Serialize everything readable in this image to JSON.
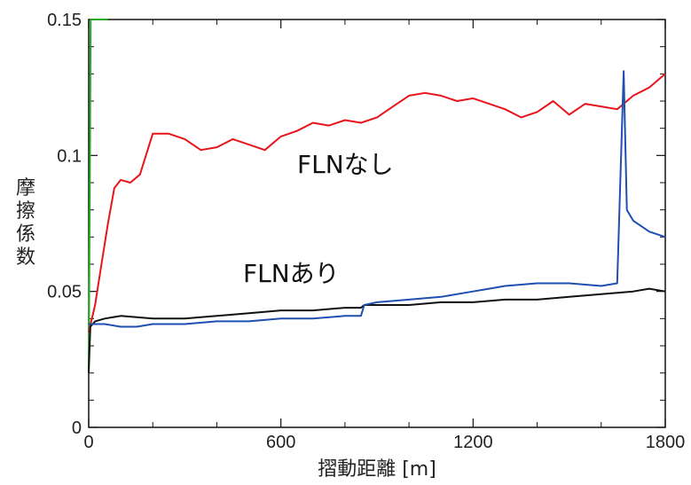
{
  "chart_data": {
    "type": "line",
    "xlabel": "摺動距離 [m]",
    "ylabel": "摩擦係数",
    "xlim": [
      0,
      1800
    ],
    "ylim": [
      0,
      0.15
    ],
    "x_ticks": [
      "0",
      "600",
      "1200",
      "1800"
    ],
    "y_ticks": [
      "0",
      "0.05",
      "0.1",
      "0.15"
    ],
    "grid": false,
    "annotations": [
      "FLNなし",
      "FLNあり"
    ],
    "colors": {
      "red": "#e8141b",
      "blue": "#1f4fb0",
      "black": "#111111",
      "green": "#22aa22"
    },
    "series": [
      {
        "color": "red",
        "x": [
          0,
          20,
          40,
          60,
          80,
          100,
          130,
          160,
          200,
          250,
          300,
          350,
          400,
          450,
          500,
          550,
          600,
          650,
          700,
          750,
          800,
          850,
          900,
          950,
          1000,
          1050,
          1100,
          1150,
          1200,
          1250,
          1300,
          1350,
          1400,
          1450,
          1500,
          1550,
          1600,
          1650,
          1700,
          1750,
          1800
        ],
        "y": [
          0.035,
          0.045,
          0.06,
          0.075,
          0.088,
          0.091,
          0.09,
          0.093,
          0.108,
          0.108,
          0.106,
          0.102,
          0.103,
          0.106,
          0.104,
          0.102,
          0.107,
          0.109,
          0.112,
          0.111,
          0.113,
          0.112,
          0.114,
          0.118,
          0.122,
          0.123,
          0.122,
          0.12,
          0.121,
          0.119,
          0.117,
          0.114,
          0.116,
          0.12,
          0.115,
          0.119,
          0.118,
          0.117,
          0.122,
          0.125,
          0.13
        ]
      },
      {
        "color": "blue",
        "x": [
          0,
          50,
          100,
          150,
          200,
          300,
          400,
          500,
          600,
          700,
          800,
          850,
          860,
          900,
          1000,
          1100,
          1200,
          1250,
          1300,
          1400,
          1500,
          1600,
          1650,
          1670,
          1680,
          1700,
          1750,
          1800
        ],
        "y": [
          0.038,
          0.038,
          0.037,
          0.037,
          0.038,
          0.038,
          0.039,
          0.039,
          0.04,
          0.04,
          0.041,
          0.041,
          0.045,
          0.046,
          0.047,
          0.048,
          0.05,
          0.051,
          0.052,
          0.053,
          0.053,
          0.052,
          0.053,
          0.131,
          0.08,
          0.076,
          0.072,
          0.07
        ]
      },
      {
        "color": "black",
        "x": [
          0,
          5,
          20,
          50,
          100,
          200,
          300,
          400,
          500,
          600,
          700,
          800,
          850,
          860,
          900,
          1000,
          1100,
          1200,
          1300,
          1400,
          1500,
          1600,
          1700,
          1750,
          1800
        ],
        "y": [
          0.02,
          0.037,
          0.039,
          0.04,
          0.041,
          0.04,
          0.04,
          0.041,
          0.042,
          0.043,
          0.043,
          0.044,
          0.044,
          0.045,
          0.045,
          0.045,
          0.046,
          0.046,
          0.047,
          0.047,
          0.048,
          0.049,
          0.05,
          0.051,
          0.05
        ]
      },
      {
        "color": "green",
        "x": [
          0,
          3,
          6,
          10,
          40,
          60
        ],
        "y": [
          0.02,
          0.08,
          0.15,
          0.15,
          0.15,
          0.15
        ]
      }
    ]
  }
}
